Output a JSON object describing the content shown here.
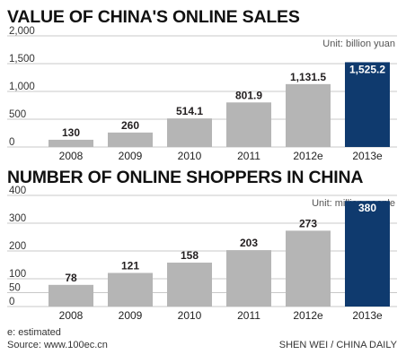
{
  "chart_data": [
    {
      "type": "bar",
      "title": "VALUE OF CHINA'S ONLINE SALES",
      "unit": "Unit: billion yuan",
      "categories": [
        "2008",
        "2009",
        "2010",
        "2011",
        "2012e",
        "2013e"
      ],
      "values": [
        130,
        260,
        514.1,
        801.9,
        1131.5,
        1525.2
      ],
      "value_labels": [
        "130",
        "260",
        "514.1",
        "801.9",
        "1,131.5",
        "1,525.2"
      ],
      "yticks": [
        0,
        500,
        1000,
        1500,
        2000
      ],
      "ytick_labels": [
        "0",
        "500",
        "1,000",
        "1,500",
        "2,000"
      ],
      "ylim": [
        0,
        2000
      ],
      "grid": true,
      "colors": [
        "#b5b5b5",
        "#b5b5b5",
        "#b5b5b5",
        "#b5b5b5",
        "#b5b5b5",
        "#0f3a6e"
      ]
    },
    {
      "type": "bar",
      "title": "NUMBER OF ONLINE SHOPPERS IN CHINA",
      "unit": "Unit: million people",
      "categories": [
        "2008",
        "2009",
        "2010",
        "2011",
        "2012e",
        "2013e"
      ],
      "values": [
        78,
        121,
        158,
        203,
        273,
        380
      ],
      "value_labels": [
        "78",
        "121",
        "158",
        "203",
        "273",
        "380"
      ],
      "yticks": [
        0,
        50,
        100,
        200,
        300,
        400
      ],
      "ytick_labels": [
        "0",
        "50",
        "100",
        "200",
        "300",
        "400"
      ],
      "ylim": [
        0,
        400
      ],
      "grid": true,
      "colors": [
        "#b5b5b5",
        "#b5b5b5",
        "#b5b5b5",
        "#b5b5b5",
        "#b5b5b5",
        "#0f3a6e"
      ]
    }
  ],
  "footer": {
    "note": "e: estimated",
    "source": "Source: www.100ec.cn",
    "credit": "SHEN WEI / CHINA DAILY"
  }
}
